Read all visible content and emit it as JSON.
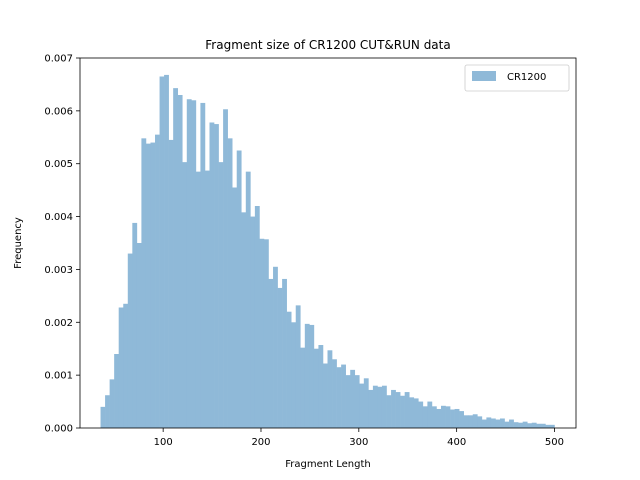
{
  "chart_data": {
    "type": "bar",
    "title": "Fragment size of CR1200 CUT&RUN data",
    "xlabel": "Fragment Length",
    "ylabel": "Frequency",
    "xlim": [
      15,
      522
    ],
    "ylim": [
      0,
      0.007
    ],
    "xticks": [
      100,
      200,
      300,
      400,
      500
    ],
    "xtick_labels": [
      "100",
      "200",
      "300",
      "400",
      "500"
    ],
    "yticks": [
      0,
      0.001,
      0.002,
      0.003,
      0.004,
      0.005,
      0.006,
      0.007
    ],
    "ytick_labels": [
      "0.000",
      "0.001",
      "0.002",
      "0.003",
      "0.004",
      "0.005",
      "0.006",
      "0.007"
    ],
    "grid": false,
    "legend_position": "top-right",
    "bin_start": 36,
    "bin_width": 4.64,
    "series": [
      {
        "name": "CR1200",
        "color": "#8fb9d8",
        "values": [
          0.0004,
          0.00062,
          0.00092,
          0.0014,
          0.00228,
          0.00235,
          0.0033,
          0.00388,
          0.0035,
          0.00548,
          0.00538,
          0.0054,
          0.00555,
          0.00665,
          0.00668,
          0.00545,
          0.00643,
          0.0063,
          0.00503,
          0.00622,
          0.0062,
          0.00485,
          0.00615,
          0.00487,
          0.00578,
          0.00575,
          0.00503,
          0.00603,
          0.00548,
          0.00455,
          0.00525,
          0.00408,
          0.00485,
          0.004,
          0.0042,
          0.00358,
          0.00357,
          0.00282,
          0.00305,
          0.00265,
          0.00282,
          0.0022,
          0.002,
          0.00232,
          0.00152,
          0.00197,
          0.00195,
          0.0015,
          0.00157,
          0.00122,
          0.00147,
          0.0013,
          0.00115,
          0.0012,
          0.001,
          0.0011,
          0.001,
          0.00084,
          0.00094,
          0.00072,
          0.0008,
          0.00078,
          0.0008,
          0.00062,
          0.00072,
          0.00068,
          0.00061,
          0.00068,
          0.00058,
          0.00056,
          0.0005,
          0.00041,
          0.0005,
          0.00041,
          0.00036,
          0.00042,
          0.00041,
          0.00035,
          0.00036,
          0.00032,
          0.00024,
          0.00024,
          0.00026,
          0.00022,
          0.00016,
          0.0002,
          0.00018,
          0.00016,
          0.00018,
          0.00012,
          0.00016,
          0.00011,
          0.0001,
          0.00012,
          9e-05,
          0.0001,
          8e-05,
          8e-05,
          6e-05,
          6e-05
        ]
      }
    ]
  }
}
